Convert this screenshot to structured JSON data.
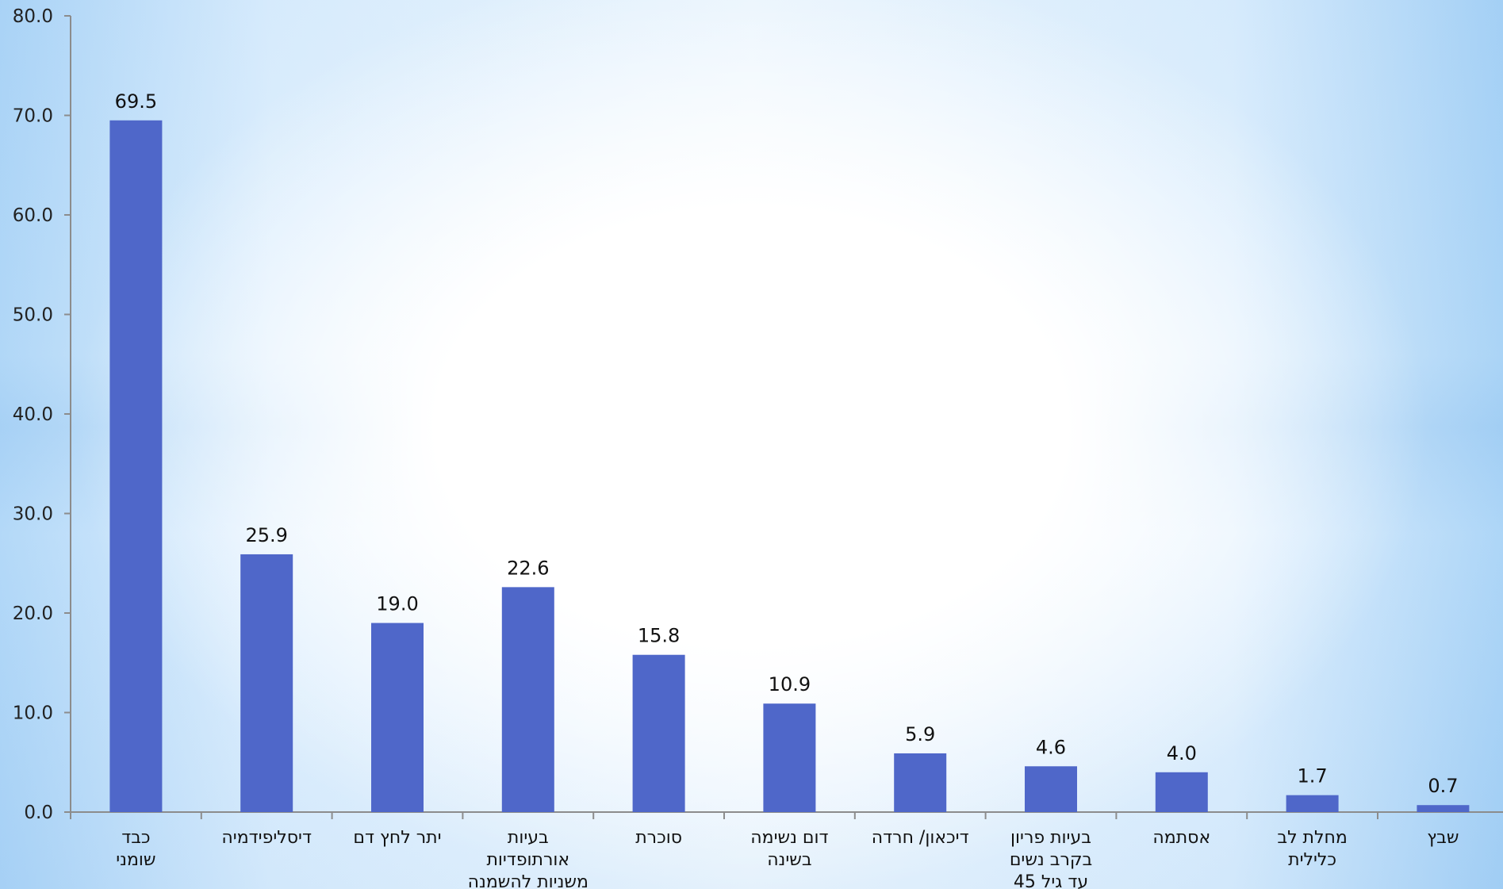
{
  "chart_data": {
    "type": "bar",
    "title": "",
    "xlabel": "",
    "ylabel": "",
    "ylim": [
      0,
      80
    ],
    "ytick_step": 10,
    "ytick_labels": [
      "0.0",
      "10.0",
      "20.0",
      "30.0",
      "40.0",
      "50.0",
      "60.0",
      "70.0",
      "80.0"
    ],
    "grid": false,
    "legend": "none",
    "bar_color": "#4f67c9",
    "categories": [
      [
        "כבד",
        "שומני"
      ],
      [
        "דיסליפידמיה"
      ],
      [
        "יתר לחץ דם"
      ],
      [
        "בעיות",
        "אורתופדיות",
        "משניות להשמנה"
      ],
      [
        "סוכרת"
      ],
      [
        "דום נשימה",
        "בשינה"
      ],
      [
        "דיכאון/ חרדה"
      ],
      [
        "בעיות פריון",
        "בקרב נשים",
        "עד גיל 45"
      ],
      [
        "אסתמה"
      ],
      [
        "מחלת לב",
        "כלילית"
      ],
      [
        "שבץ"
      ]
    ],
    "values": [
      69.5,
      25.9,
      19.0,
      22.6,
      15.8,
      10.9,
      5.9,
      4.6,
      4.0,
      1.7,
      0.7
    ],
    "value_labels": [
      "69.5",
      "25.9",
      "19.0",
      "22.6",
      "15.8",
      "10.9",
      "5.9",
      "4.6",
      "4.0",
      "1.7",
      "0.7"
    ]
  }
}
